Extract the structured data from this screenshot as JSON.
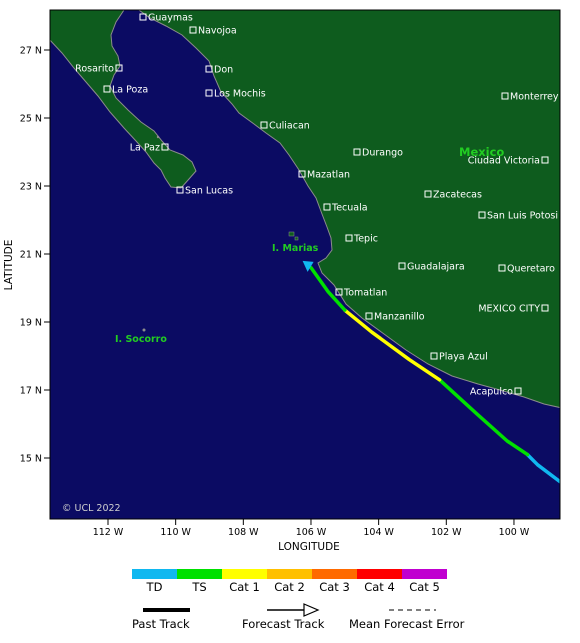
{
  "map": {
    "lat_axis_label": "LATITUDE",
    "lon_axis_label": "LONGITUDE",
    "lat_ticks": [
      "27 N",
      "25 N",
      "23 N",
      "21 N",
      "19 N",
      "17 N",
      "15 N"
    ],
    "lon_ticks": [
      "112 W",
      "110 W",
      "108 W",
      "106 W",
      "104 W",
      "102 W",
      "100 W"
    ],
    "copyright": "© UCL 2022",
    "regions": [
      {
        "key": "mexico",
        "label": "Mexico"
      },
      {
        "key": "marias",
        "label": "I. Marias"
      },
      {
        "key": "socorro",
        "label": "I. Socorro"
      }
    ],
    "cities": [
      "Guaymas",
      "Navojoa",
      "Rosarito",
      "Don",
      "La Poza",
      "Los Mochis",
      "Monterrey",
      "Culiacan",
      "La Paz",
      "Durango",
      "Ciudad Victoria",
      "Mazatlan",
      "San Lucas",
      "Zacatecas",
      "Tecuala",
      "San Luis Potosi",
      "Tepic",
      "Guadalajara",
      "Queretaro",
      "Tomatlan",
      "MEXICO CITY",
      "Manzanillo",
      "Playa Azul",
      "Acapulco"
    ],
    "colors": {
      "ocean": "#0b0b63",
      "land": "#0e5c1e",
      "coast": "#8c8c8c",
      "region_label": "#22cc22",
      "city_text": "#ffffff"
    }
  },
  "track": {
    "segments": [
      {
        "category": "TD",
        "color": "#10b8f0",
        "points": [
          [
            -99.3,
            14.8
          ],
          [
            -99.6,
            15.1
          ]
        ]
      },
      {
        "category": "TS",
        "color": "#00e000",
        "points": [
          [
            -99.6,
            15.1
          ],
          [
            -100.2,
            15.5
          ],
          [
            -101.1,
            16.3
          ],
          [
            -102.2,
            17.3
          ]
        ]
      },
      {
        "category": "Cat 1",
        "color": "#ffff00",
        "points": [
          [
            -102.2,
            17.3
          ],
          [
            -103.1,
            17.9
          ],
          [
            -104.2,
            18.7
          ],
          [
            -105.0,
            19.35
          ]
        ]
      },
      {
        "category": "TS",
        "color": "#00e000",
        "points": [
          [
            -105.0,
            19.35
          ],
          [
            -105.5,
            19.9
          ],
          [
            -106.0,
            20.6
          ]
        ]
      }
    ],
    "lead_segment": {
      "category": "TD",
      "color": "#10b8f0",
      "points": [
        [
          -99.3,
          14.8
        ],
        [
          -98.5,
          14.2
        ]
      ]
    },
    "last_position": {
      "lon": -106.1,
      "lat": 20.65,
      "category": "TD",
      "color": "#10b8f0"
    }
  },
  "legend": {
    "categories": [
      {
        "label": "TD",
        "color": "#10b8f0"
      },
      {
        "label": "TS",
        "color": "#00e000"
      },
      {
        "label": "Cat 1",
        "color": "#ffff00"
      },
      {
        "label": "Cat 2",
        "color": "#ffc000"
      },
      {
        "label": "Cat 3",
        "color": "#ff6a00"
      },
      {
        "label": "Cat 4",
        "color": "#ff0000"
      },
      {
        "label": "Cat 5",
        "color": "#c000d0"
      }
    ],
    "past_track_label": "Past Track",
    "forecast_track_label": "Forecast Track",
    "error_label": "Mean Forecast Error"
  }
}
